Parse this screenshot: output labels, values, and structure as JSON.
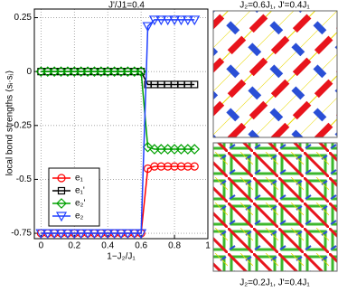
{
  "chart_data": {
    "type": "line",
    "title": "J'/J1=0.4",
    "x_label": "1−J₂/J₁",
    "y_label": "local bond strengths ⟨sᵢ·sⱼ⟩",
    "x": [
      0,
      0.04,
      0.08,
      0.12,
      0.16,
      0.2,
      0.24,
      0.28,
      0.32,
      0.36,
      0.4,
      0.44,
      0.48,
      0.52,
      0.56,
      0.6,
      0.64,
      0.68,
      0.72,
      0.76,
      0.8,
      0.84,
      0.88,
      0.92
    ],
    "series": [
      {
        "name": "e₁",
        "color": "#ff0000",
        "marker": "circle",
        "values": [
          -0.75,
          -0.75,
          -0.75,
          -0.75,
          -0.75,
          -0.75,
          -0.75,
          -0.75,
          -0.75,
          -0.75,
          -0.75,
          -0.75,
          -0.75,
          -0.75,
          -0.75,
          -0.75,
          -0.45,
          -0.44,
          -0.44,
          -0.44,
          -0.44,
          -0.44,
          -0.44,
          -0.44
        ]
      },
      {
        "name": "e₁'",
        "color": "#000000",
        "marker": "square",
        "values": [
          0,
          0,
          0,
          0,
          0,
          0,
          0,
          0,
          0,
          0,
          0,
          0,
          0,
          0,
          0,
          0,
          -0.06,
          -0.06,
          -0.06,
          -0.06,
          -0.06,
          -0.06,
          -0.06,
          -0.06
        ]
      },
      {
        "name": "e₂'",
        "color": "#00a000",
        "marker": "diamond",
        "values": [
          0,
          0,
          0,
          0,
          0,
          0,
          0,
          0,
          0,
          0,
          0,
          0,
          0,
          0,
          0,
          0,
          -0.35,
          -0.36,
          -0.36,
          -0.36,
          -0.36,
          -0.36,
          -0.36,
          -0.36
        ]
      },
      {
        "name": "e₂",
        "color": "#2040ff",
        "marker": "triangle-down",
        "values": [
          -0.75,
          -0.75,
          -0.75,
          -0.75,
          -0.75,
          -0.75,
          -0.75,
          -0.75,
          -0.75,
          -0.75,
          -0.75,
          -0.75,
          -0.75,
          -0.75,
          -0.75,
          -0.75,
          0.21,
          0.24,
          0.24,
          0.24,
          0.24,
          0.24,
          0.24,
          0.24
        ]
      }
    ],
    "xlim": [
      -0.04,
      1
    ],
    "xticks": [
      0,
      0.2,
      0.4,
      0.6,
      0.8,
      1
    ],
    "ylim": [
      -0.775,
      0.29
    ],
    "yticks": [
      0.25,
      0,
      -0.25,
      -0.5,
      -0.75
    ],
    "grid": true,
    "legend_loc": "lower left"
  },
  "panels": [
    {
      "label": "J₂=0.6J₁, J'=0.4J₁"
    },
    {
      "label": "J₂=0.2J₁, J'=0.4J₁"
    }
  ]
}
